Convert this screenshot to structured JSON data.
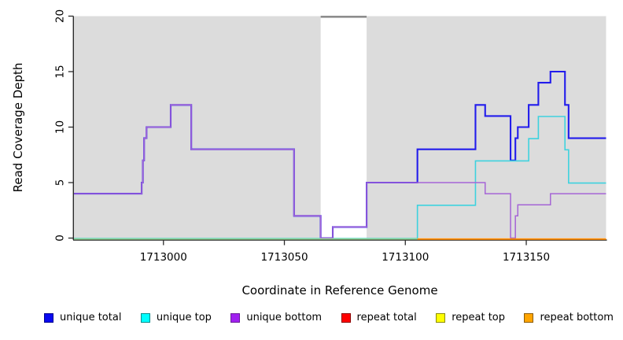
{
  "chart_data": {
    "type": "line",
    "step": true,
    "title": "",
    "xlabel": "Coordinate in Reference Genome",
    "ylabel": "Read Coverage Depth",
    "xlim": [
      1712963,
      1713183
    ],
    "ylim": [
      0,
      20
    ],
    "x_ticks": [
      1713000,
      1713050,
      1713100,
      1713150
    ],
    "y_ticks": [
      0,
      5,
      10,
      15,
      20
    ],
    "grid": false,
    "legend_position": "bottom",
    "plot_bg": "#dcdcdc",
    "axis_color": "#2b2b2b",
    "gap_band": {
      "x0": 1713065,
      "x1": 1713084,
      "fill": "#ffffff",
      "cap_color": "#8c8c8c"
    },
    "series": [
      {
        "key": "unique-total",
        "name": "unique total",
        "color": "#221cec",
        "width": 2.1,
        "dy": 0,
        "steps": [
          [
            1712963,
            4
          ],
          [
            1712991,
            5
          ],
          [
            1712991.5,
            7
          ],
          [
            1712992,
            9
          ],
          [
            1712993,
            10
          ],
          [
            1713003,
            12
          ],
          [
            1713011.5,
            8
          ],
          [
            1713054,
            2
          ],
          [
            1713065,
            0
          ],
          [
            1713070,
            1
          ],
          [
            1713084,
            5
          ],
          [
            1713105,
            8
          ],
          [
            1713129,
            12
          ],
          [
            1713133,
            11
          ],
          [
            1713143.5,
            7
          ],
          [
            1713145.5,
            9
          ],
          [
            1713146.5,
            10
          ],
          [
            1713151,
            12
          ],
          [
            1713155,
            14
          ],
          [
            1713160,
            15
          ],
          [
            1713166,
            12
          ],
          [
            1713167.5,
            9
          ]
        ]
      },
      {
        "key": "unique-top",
        "name": "unique top",
        "color": "#3ed2de",
        "width": 1.6,
        "dy": 0.6,
        "steps": [
          [
            1712963,
            0
          ],
          [
            1713105,
            3
          ],
          [
            1713129,
            7
          ],
          [
            1713151,
            9
          ],
          [
            1713155,
            11
          ],
          [
            1713166,
            8
          ],
          [
            1713167.5,
            5
          ]
        ]
      },
      {
        "key": "unique-bottom",
        "name": "unique bottom",
        "color": "#a565d6",
        "width": 1.5,
        "dy": 0,
        "steps": [
          [
            1712963,
            4
          ],
          [
            1712991,
            5
          ],
          [
            1712991.5,
            7
          ],
          [
            1712992,
            9
          ],
          [
            1712993,
            10
          ],
          [
            1713003,
            12
          ],
          [
            1713011.5,
            8
          ],
          [
            1713054,
            2
          ],
          [
            1713065,
            0
          ],
          [
            1713070,
            1
          ],
          [
            1713084,
            5
          ],
          [
            1713133,
            4
          ],
          [
            1713143.5,
            0
          ],
          [
            1713145.5,
            2
          ],
          [
            1713146.5,
            3
          ],
          [
            1713160,
            4
          ]
        ]
      },
      {
        "key": "repeat-total",
        "name": "repeat total",
        "color": "#ff0000",
        "width": 1.5,
        "dy": 0,
        "steps": []
      },
      {
        "key": "repeat-top",
        "name": "repeat top",
        "color": "#ffff00",
        "width": 1.5,
        "dy": 0,
        "steps": []
      },
      {
        "key": "repeat-bottom",
        "name": "repeat bottom",
        "color": "#ff8c00",
        "width": 2,
        "dy": 1.3,
        "steps": [
          [
            1713105,
            0
          ]
        ]
      }
    ],
    "baseline_overlap": {
      "color": "#96d896",
      "width": 1.7,
      "x0": 1712963,
      "x1": 1713105,
      "y": 0,
      "dy": 1.1,
      "note": "unique top / repeat top lines overlapping at depth 0"
    }
  },
  "legend": {
    "items": [
      {
        "label": "unique total",
        "fill": "#0909f0",
        "border": "#000090"
      },
      {
        "label": "unique top",
        "fill": "#00ffff",
        "border": "#008b8b"
      },
      {
        "label": "unique bottom",
        "fill": "#a020f0",
        "border": "#6a1b9a"
      },
      {
        "label": "repeat total",
        "fill": "#ff0000",
        "border": "#8b0000"
      },
      {
        "label": "repeat top",
        "fill": "#ffff00",
        "border": "#8b8b00"
      },
      {
        "label": "repeat bottom",
        "fill": "#ffa500",
        "border": "#8b5a00"
      }
    ]
  }
}
